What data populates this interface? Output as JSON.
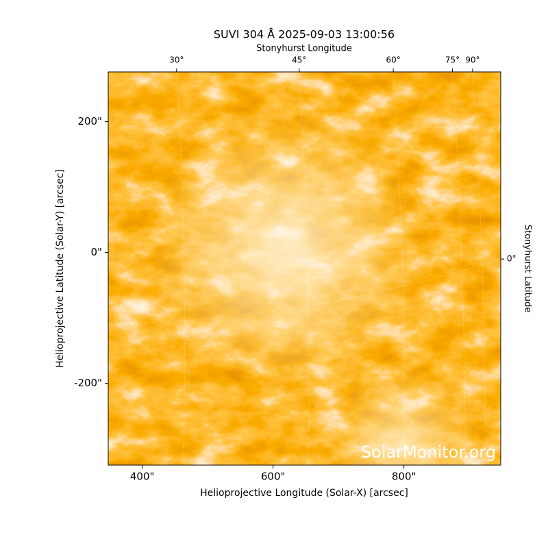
{
  "chart_data": {
    "type": "image",
    "title": "SUVI 304 Å 2025-09-03 13:00:56",
    "xlabel": "Helioprojective Longitude (Solar-X) [arcsec]",
    "ylabel": "Helioprojective Latitude (Solar-Y) [arcsec]",
    "xlim": [
      348,
      948
    ],
    "ylim": [
      -325,
      276
    ],
    "xticks": [
      {
        "value": 400,
        "label": "400\""
      },
      {
        "value": 600,
        "label": "600\""
      },
      {
        "value": 800,
        "label": "800\""
      }
    ],
    "yticks": [
      {
        "value": -200,
        "label": "-200\""
      },
      {
        "value": 0,
        "label": "0\""
      },
      {
        "value": 200,
        "label": "200\""
      }
    ],
    "lon_label": "Stonyhurst Longitude",
    "lon_ticks": [
      {
        "value": 30,
        "label": "30°"
      },
      {
        "value": 45,
        "label": "45°"
      },
      {
        "value": 60,
        "label": "60°"
      },
      {
        "value": 75,
        "label": "75°"
      },
      {
        "value": 90,
        "label": "90°"
      }
    ],
    "lat_label": "Stonyhurst Latitude",
    "lat_ticks": [
      {
        "value": 0,
        "label": "0°"
      }
    ],
    "watermark": "SolarMonitor.org"
  }
}
